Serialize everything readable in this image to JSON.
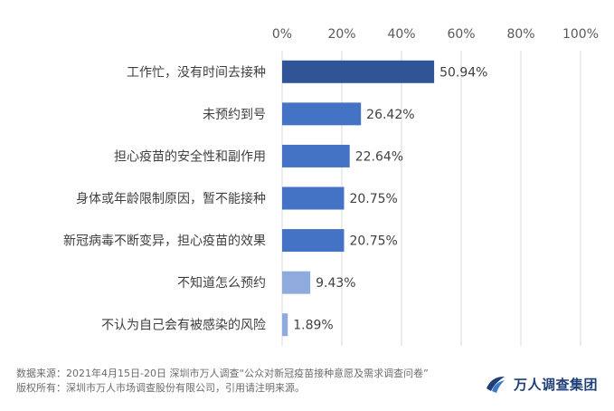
{
  "chart_data": {
    "type": "bar",
    "orientation": "horizontal",
    "categories": [
      "工作忙，没有时间去接种",
      "未预约到号",
      "担心疫苗的安全性和副作用",
      "身体或年龄限制原因，暂不能接种",
      "新冠病毒不断变异，担心疫苗的效果",
      "不知道怎么预约",
      "不认为自己会有被感染的风险"
    ],
    "values": [
      50.94,
      26.42,
      22.64,
      20.75,
      20.75,
      9.43,
      1.89
    ],
    "value_labels": [
      "50.94%",
      "26.42%",
      "22.64%",
      "20.75%",
      "20.75%",
      "9.43%",
      "1.89%"
    ],
    "bar_colors": [
      "#2F5597",
      "#4472C4",
      "#4472C4",
      "#4472C4",
      "#4472C4",
      "#8FAADC",
      "#8FAADC"
    ],
    "xlim": [
      0,
      100
    ],
    "x_ticks": [
      0,
      20,
      40,
      60,
      80,
      100
    ],
    "x_tick_labels": [
      "0%",
      "20%",
      "40%",
      "60%",
      "80%",
      "100%"
    ],
    "x_axis_position": "top",
    "grid": "vertical",
    "grid_color": "#d9d9d9",
    "title": "",
    "xlabel": "",
    "ylabel": ""
  },
  "footer": {
    "source": "数据来源：2021年4月15日-20日 深圳市万人调查“公众对新冠疫苗接种意愿及需求调查问卷”",
    "copyright": "版权所有：深圳市万人市场调查股份有限公司，引用请注明来源。"
  },
  "brand": {
    "name": "万人调查集团",
    "logo_icon": "wanren-logo-icon",
    "color": "#1f3f78"
  }
}
